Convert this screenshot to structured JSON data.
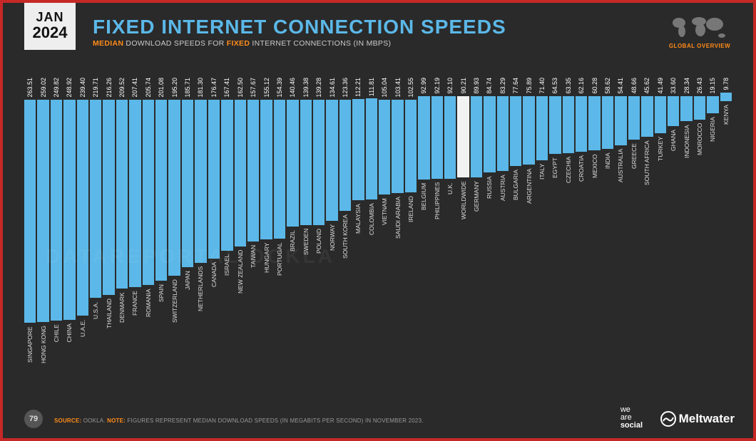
{
  "header": {
    "date_month": "JAN",
    "date_year": "2024",
    "title": "FIXED INTERNET CONNECTION SPEEDS",
    "subtitle_prefix": "MEDIAN",
    "subtitle_mid": " DOWNLOAD SPEEDS FOR ",
    "subtitle_hl2": "FIXED",
    "subtitle_suffix": " INTERNET CONNECTIONS (IN MBPS)",
    "globe_label": "GLOBAL OVERVIEW"
  },
  "chart": {
    "type": "bar",
    "bar_color": "#5bb8e8",
    "highlight_color": "#f2f2f2",
    "background_color": "#2a2a2a",
    "value_text_color": "#ffffff",
    "category_text_color": "#dddddd",
    "value_fontsize": 9,
    "category_fontsize": 8.5,
    "ymax": 265,
    "data": [
      {
        "label": "SINGAPORE",
        "value": 263.51,
        "highlight": false
      },
      {
        "label": "HONG KONG",
        "value": 259.02,
        "highlight": false
      },
      {
        "label": "CHILE",
        "value": 249.82,
        "highlight": false
      },
      {
        "label": "CHINA",
        "value": 248.92,
        "highlight": false
      },
      {
        "label": "U.A.E.",
        "value": 239.4,
        "highlight": false
      },
      {
        "label": "U.S.A.",
        "value": 219.71,
        "highlight": false
      },
      {
        "label": "THAILAND",
        "value": 216.26,
        "highlight": false
      },
      {
        "label": "DENMARK",
        "value": 209.52,
        "highlight": false
      },
      {
        "label": "FRANCE",
        "value": 207.41,
        "highlight": false
      },
      {
        "label": "ROMANIA",
        "value": 205.74,
        "highlight": false
      },
      {
        "label": "SPAIN",
        "value": 201.08,
        "highlight": false
      },
      {
        "label": "SWITZERLAND",
        "value": 195.2,
        "highlight": false
      },
      {
        "label": "JAPAN",
        "value": 185.71,
        "highlight": false
      },
      {
        "label": "NETHERLANDS",
        "value": 181.3,
        "highlight": false
      },
      {
        "label": "CANADA",
        "value": 176.47,
        "highlight": false
      },
      {
        "label": "ISRAEL",
        "value": 167.41,
        "highlight": false
      },
      {
        "label": "NEW ZEALAND",
        "value": 162.5,
        "highlight": false
      },
      {
        "label": "TAIWAN",
        "value": 157.67,
        "highlight": false
      },
      {
        "label": "HUNGARY",
        "value": 155.12,
        "highlight": false
      },
      {
        "label": "PORTUGAL",
        "value": 154.39,
        "highlight": false
      },
      {
        "label": "BRAZIL",
        "value": 140.46,
        "highlight": false
      },
      {
        "label": "SWEDEN",
        "value": 139.38,
        "highlight": false
      },
      {
        "label": "POLAND",
        "value": 139.28,
        "highlight": false
      },
      {
        "label": "NORWAY",
        "value": 134.61,
        "highlight": false
      },
      {
        "label": "SOUTH KOREA",
        "value": 123.36,
        "highlight": false
      },
      {
        "label": "MALAYSIA",
        "value": 112.21,
        "highlight": false
      },
      {
        "label": "COLOMBIA",
        "value": 111.81,
        "highlight": false
      },
      {
        "label": "VIETNAM",
        "value": 105.04,
        "highlight": false
      },
      {
        "label": "SAUDI ARABIA",
        "value": 103.41,
        "highlight": false
      },
      {
        "label": "IRELAND",
        "value": 102.55,
        "highlight": false
      },
      {
        "label": "BELGIUM",
        "value": 92.99,
        "highlight": false
      },
      {
        "label": "PHILIPPINES",
        "value": 92.19,
        "highlight": false
      },
      {
        "label": "U.K.",
        "value": 92.1,
        "highlight": false
      },
      {
        "label": "WORLDWIDE",
        "value": 90.21,
        "highlight": true
      },
      {
        "label": "GERMANY",
        "value": 89.93,
        "highlight": false
      },
      {
        "label": "RUSSIA",
        "value": 84.74,
        "highlight": false
      },
      {
        "label": "AUSTRIA",
        "value": 83.29,
        "highlight": false
      },
      {
        "label": "BULGARIA",
        "value": 77.64,
        "highlight": false
      },
      {
        "label": "ARGENTINA",
        "value": 75.89,
        "highlight": false
      },
      {
        "label": "ITALY",
        "value": 71.4,
        "highlight": false
      },
      {
        "label": "EGYPT",
        "value": 64.53,
        "highlight": false
      },
      {
        "label": "CZECHIA",
        "value": 63.35,
        "highlight": false
      },
      {
        "label": "CROATIA",
        "value": 62.16,
        "highlight": false
      },
      {
        "label": "MEXICO",
        "value": 60.28,
        "highlight": false
      },
      {
        "label": "INDIA",
        "value": 58.62,
        "highlight": false
      },
      {
        "label": "AUSTRALIA",
        "value": 54.41,
        "highlight": false
      },
      {
        "label": "GREECE",
        "value": 48.66,
        "highlight": false
      },
      {
        "label": "SOUTH AFRICA",
        "value": 45.62,
        "highlight": false
      },
      {
        "label": "TURKEY",
        "value": 41.49,
        "highlight": false
      },
      {
        "label": "GHANA",
        "value": 33.6,
        "highlight": false
      },
      {
        "label": "INDONESIA",
        "value": 28.34,
        "highlight": false
      },
      {
        "label": "MOROCCO",
        "value": 26.43,
        "highlight": false
      },
      {
        "label": "NIGERIA",
        "value": 19.15,
        "highlight": false
      },
      {
        "label": "KENYA",
        "value": 9.78,
        "highlight": false
      }
    ]
  },
  "watermark": "DATAREPORTAL   OOKLA",
  "footer": {
    "page_number": "79",
    "source_label": "SOURCE:",
    "source_name": " OOKLA. ",
    "note_label": "NOTE:",
    "note_text": " FIGURES REPRESENT MEDIAN DOWNLOAD SPEEDS (IN MEGABITS PER SECOND) IN NOVEMBER 2023.",
    "logo_social_1": "we",
    "logo_social_2": "are",
    "logo_social_3": "social",
    "logo_meltwater": "Meltwater"
  },
  "colors": {
    "frame_border": "#c62828",
    "slide_bg": "#2a2a2a",
    "accent_orange": "#ff8c1a",
    "accent_blue": "#5bb8e8",
    "text_light": "#ffffff",
    "text_muted": "#999999"
  }
}
